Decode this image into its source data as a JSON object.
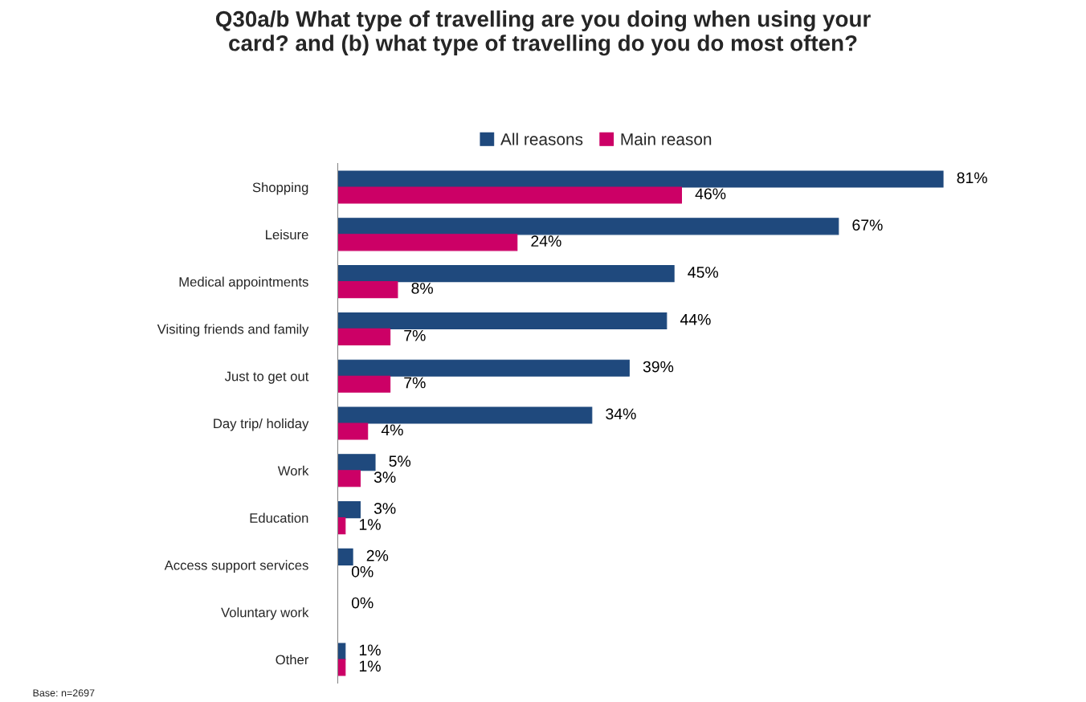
{
  "chart_data": {
    "type": "bar",
    "orientation": "horizontal",
    "title": "Q30a/b What type of travelling are you doing when using your\ncard? and (b) what type of travelling do you do most often?",
    "categories": [
      "Shopping",
      "Leisure",
      "Medical appointments",
      "Visiting friends and family",
      "Just to get out",
      "Day trip/ holiday",
      "Work",
      "Education",
      "Access support services",
      "Voluntary work",
      "Other"
    ],
    "series": [
      {
        "name": "All reasons",
        "color": "#1f497d",
        "values": [
          81,
          67,
          45,
          44,
          39,
          34,
          5,
          3,
          2,
          0,
          1
        ],
        "value_labels": [
          "81%",
          "67%",
          "45%",
          "44%",
          "39%",
          "34%",
          "5%",
          "3%",
          "2%",
          "0%",
          "1%"
        ]
      },
      {
        "name": "Main reason",
        "color": "#cc0066",
        "values": [
          46,
          24,
          8,
          7,
          7,
          4,
          3,
          1,
          0,
          null,
          1
        ],
        "value_labels": [
          "46%",
          "24%",
          "8%",
          "7%",
          "7%",
          "4%",
          "3%",
          "1%",
          "0%",
          null,
          "1%"
        ]
      }
    ],
    "legend": "top",
    "grid": false,
    "tick_labels": "y",
    "annotations": [
      "Base: n=2697"
    ]
  }
}
